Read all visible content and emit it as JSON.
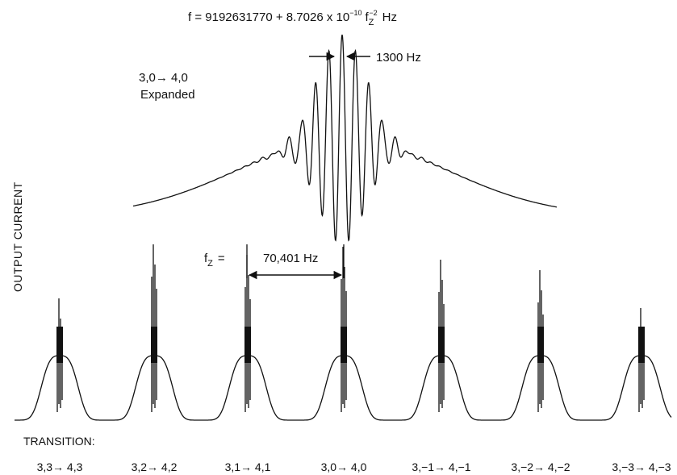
{
  "formula": {
    "prefix": "f = 9192631770 + 8.7026 x 10",
    "exponent": "−10",
    "var": "f",
    "var_sub": "Z",
    "var_sup": "−2",
    "unit": "Hz"
  },
  "expanded": {
    "transition": "3,0→ 4,0",
    "note": "Expanded",
    "width_label": "1300 Hz"
  },
  "spacing": {
    "prefix": "f",
    "sub": "Z",
    "eq": "=",
    "value": "70,401 Hz"
  },
  "y_axis_label": "OUTPUT CURRENT",
  "transition_heading": "TRANSITION:",
  "transitions": [
    {
      "label": "3,3→ 4,3"
    },
    {
      "label": "3,2→ 4,2"
    },
    {
      "label": "3,1→ 4,1"
    },
    {
      "label": "3,0→ 4,0"
    },
    {
      "label": "3,−1→ 4,−1"
    },
    {
      "label": "3,−2→ 4,−2"
    },
    {
      "label": "3,−3→ 4,−3"
    }
  ],
  "line_color": "#111111"
}
